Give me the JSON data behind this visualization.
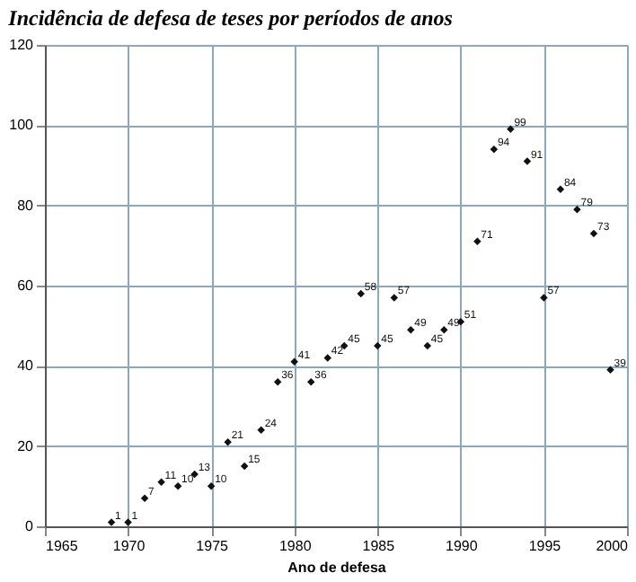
{
  "chart_data": {
    "type": "scatter",
    "title": "Incidência de defesa de teses por períodos de anos",
    "xlabel": "Ano de defesa",
    "x": [
      1969,
      1970,
      1971,
      1972,
      1973,
      1974,
      1975,
      1976,
      1977,
      1978,
      1979,
      1980,
      1981,
      1982,
      1983,
      1984,
      1985,
      1986,
      1987,
      1988,
      1989,
      1990,
      1991,
      1992,
      1993,
      1994,
      1995,
      1996,
      1997,
      1998,
      1999
    ],
    "values": [
      1,
      1,
      7,
      11,
      10,
      13,
      10,
      21,
      15,
      24,
      36,
      41,
      36,
      42,
      45,
      58,
      45,
      57,
      49,
      45,
      49,
      51,
      71,
      94,
      99,
      91,
      57,
      84,
      79,
      73,
      39
    ],
    "color": "#111111",
    "marker": "diamond",
    "data_labels": true,
    "xlim": [
      1965,
      2000
    ],
    "xticks": [
      1965,
      1970,
      1975,
      1980,
      1985,
      1990,
      1995,
      2000
    ],
    "ylim": [
      0,
      120
    ],
    "yticks": [
      0,
      20,
      40,
      60,
      80,
      100,
      120
    ],
    "grid": true
  }
}
